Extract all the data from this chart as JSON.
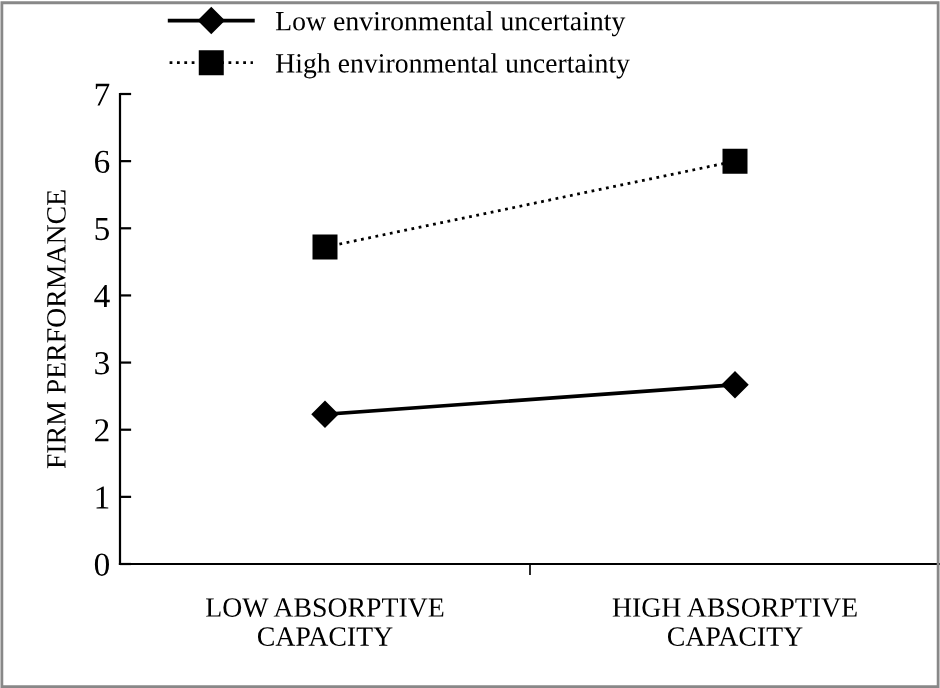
{
  "chart_data": {
    "type": "line",
    "ylabel": "FIRM PERFORMANCE",
    "categories": [
      "LOW ABSORPTIVE\nCAPACITY",
      "HIGH ABSORPTIVE\nCAPACITY"
    ],
    "series": [
      {
        "name": "Low environmental uncertainty",
        "color": "#000000",
        "values": [
          2.23,
          2.67
        ],
        "marker": "diamond",
        "line_style": "solid"
      },
      {
        "name": "High environmental uncertainty",
        "color": "#000000",
        "values": [
          4.72,
          6.0
        ],
        "marker": "square",
        "line_style": "dotted"
      }
    ],
    "ylim": [
      0,
      7
    ],
    "yticks": [
      0,
      1,
      2,
      3,
      4,
      5,
      6,
      7
    ],
    "grid": false,
    "legend": "top left"
  }
}
